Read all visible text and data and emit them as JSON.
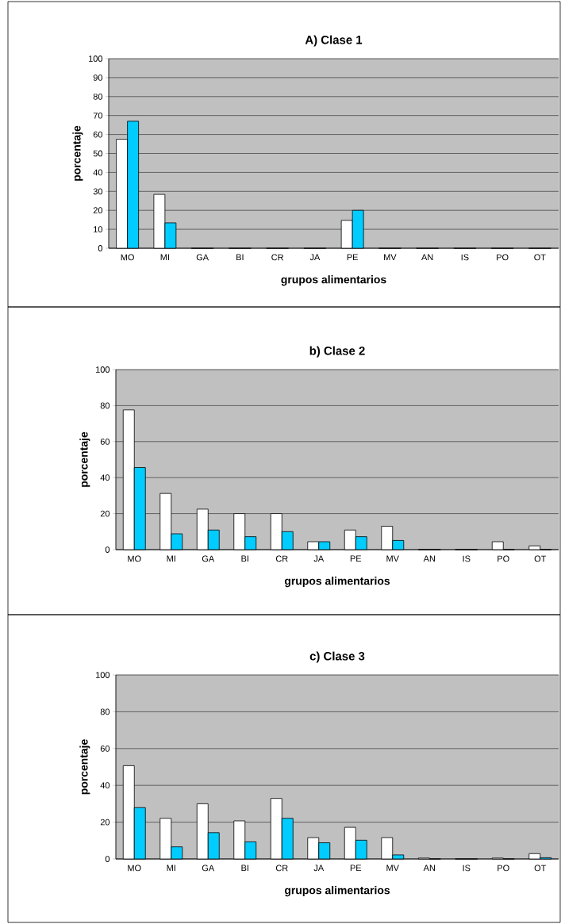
{
  "chart_data": [
    {
      "type": "bar",
      "title": "A) Clase 1",
      "xlabel": "grupos alimentarios",
      "ylabel": "porcentaje",
      "categories": [
        "MO",
        "MI",
        "GA",
        "BI",
        "CR",
        "JA",
        "PE",
        "MV",
        "AN",
        "IS",
        "PO",
        "OT"
      ],
      "series": [
        {
          "color": "#ffffff",
          "values": [
            57.5,
            28.4,
            0,
            0,
            0,
            0,
            14.7,
            0,
            0,
            0,
            0,
            0
          ]
        },
        {
          "color": "#00ccff",
          "values": [
            67,
            13.4,
            0,
            0,
            0,
            0,
            20,
            0,
            0,
            0,
            0,
            0
          ]
        }
      ],
      "ylim": [
        0,
        100
      ],
      "yticks": [
        0,
        10,
        20,
        30,
        40,
        50,
        60,
        70,
        80,
        90,
        100
      ],
      "grid": "y"
    },
    {
      "type": "bar",
      "title": "b) Clase 2",
      "xlabel": "grupos alimentarios",
      "ylabel": "porcentaje",
      "categories": [
        "MO",
        "MI",
        "GA",
        "BI",
        "CR",
        "JA",
        "PE",
        "MV",
        "AN",
        "IS",
        "PO",
        "OT"
      ],
      "series": [
        {
          "color": "#ffffff",
          "values": [
            77.6,
            31.2,
            22.5,
            20,
            20,
            4.4,
            10.9,
            13,
            0,
            0,
            4.4,
            2.1
          ]
        },
        {
          "color": "#00ccff",
          "values": [
            45.6,
            8.8,
            10.9,
            7.2,
            10,
            4.4,
            7.2,
            5.1,
            0,
            0,
            0,
            0
          ]
        }
      ],
      "ylim": [
        0,
        100
      ],
      "yticks": [
        0,
        20,
        40,
        60,
        80,
        100
      ],
      "grid": "y"
    },
    {
      "type": "bar",
      "title": "c) Clase 3",
      "xlabel": "grupos alimentarios",
      "ylabel": "porcentaje",
      "categories": [
        "MO",
        "MI",
        "GA",
        "BI",
        "CR",
        "JA",
        "PE",
        "MV",
        "AN",
        "IS",
        "PO",
        "OT"
      ],
      "series": [
        {
          "color": "#ffffff",
          "values": [
            50.7,
            22.1,
            30,
            20.7,
            32.9,
            11.6,
            17.2,
            11.6,
            0.5,
            0,
            0.5,
            2.9
          ]
        },
        {
          "color": "#00ccff",
          "values": [
            27.9,
            6.6,
            14.3,
            9.3,
            22.1,
            8.8,
            10.2,
            2.2,
            0,
            0,
            0,
            0.7
          ]
        }
      ],
      "ylim": [
        0,
        100
      ],
      "yticks": [
        0,
        20,
        40,
        60,
        80,
        100
      ],
      "grid": "y"
    }
  ]
}
